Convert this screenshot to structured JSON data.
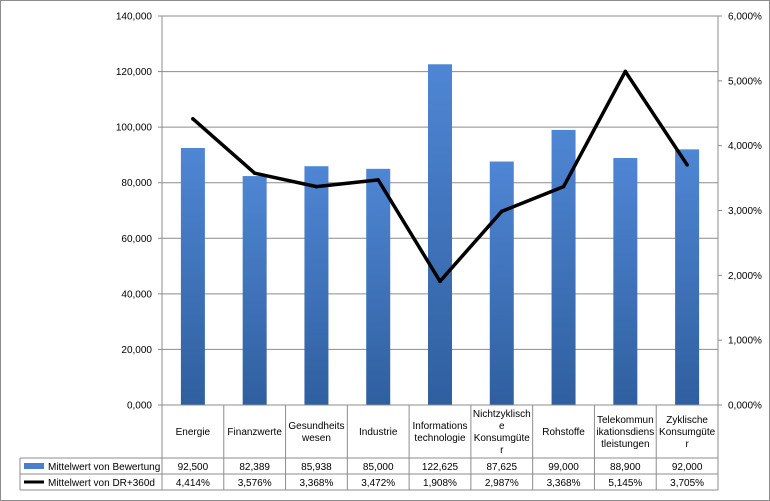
{
  "chart_data": {
    "type": "bar",
    "categories": [
      [
        "Energie"
      ],
      [
        "Finanzwerte"
      ],
      [
        "Gesundheits",
        "wesen"
      ],
      [
        "Industrie"
      ],
      [
        "Informations",
        "technologie"
      ],
      [
        "Nichtzyklisch",
        "e",
        "Konsumgüte",
        "r"
      ],
      [
        "Rohstoffe"
      ],
      [
        "Telekommun",
        "ikationsdiens",
        "tleistungen"
      ],
      [
        "Zyklische",
        "Konsumgüte",
        "r"
      ]
    ],
    "series": [
      {
        "name": "Mittelwert von Bewertung",
        "type": "bar",
        "axis": "left",
        "color": "#4a7fcb",
        "values": [
          92.5,
          82.389,
          85.938,
          85.0,
          122.625,
          87.625,
          99.0,
          88.9,
          92.0
        ],
        "labels": [
          "92,500",
          "82,389",
          "85,938",
          "85,000",
          "122,625",
          "87,625",
          "99,000",
          "88,900",
          "92,000"
        ]
      },
      {
        "name": "Mittelwert von DR+360d",
        "type": "line",
        "axis": "right",
        "color": "#000000",
        "values": [
          4.414,
          3.576,
          3.368,
          3.472,
          1.908,
          2.987,
          3.368,
          5.145,
          3.705
        ],
        "labels": [
          "4,414%",
          "3,576%",
          "3,368%",
          "3,472%",
          "1,908%",
          "2,987%",
          "3,368%",
          "5,145%",
          "3,705%"
        ]
      }
    ],
    "y_left": {
      "range": [
        0,
        140
      ],
      "ticks": [
        0,
        20,
        40,
        60,
        80,
        100,
        120,
        140
      ],
      "tick_labels": [
        "0,000",
        "20,000",
        "40,000",
        "60,000",
        "80,000",
        "100,000",
        "120,000",
        "140,000"
      ]
    },
    "y_right": {
      "range": [
        0,
        6
      ],
      "ticks": [
        0,
        1,
        2,
        3,
        4,
        5,
        6
      ],
      "tick_labels": [
        "0,000%",
        "1,000%",
        "2,000%",
        "3,000%",
        "4,000%",
        "5,000%",
        "6,000%"
      ]
    },
    "grid": true,
    "legend": "data-table"
  }
}
